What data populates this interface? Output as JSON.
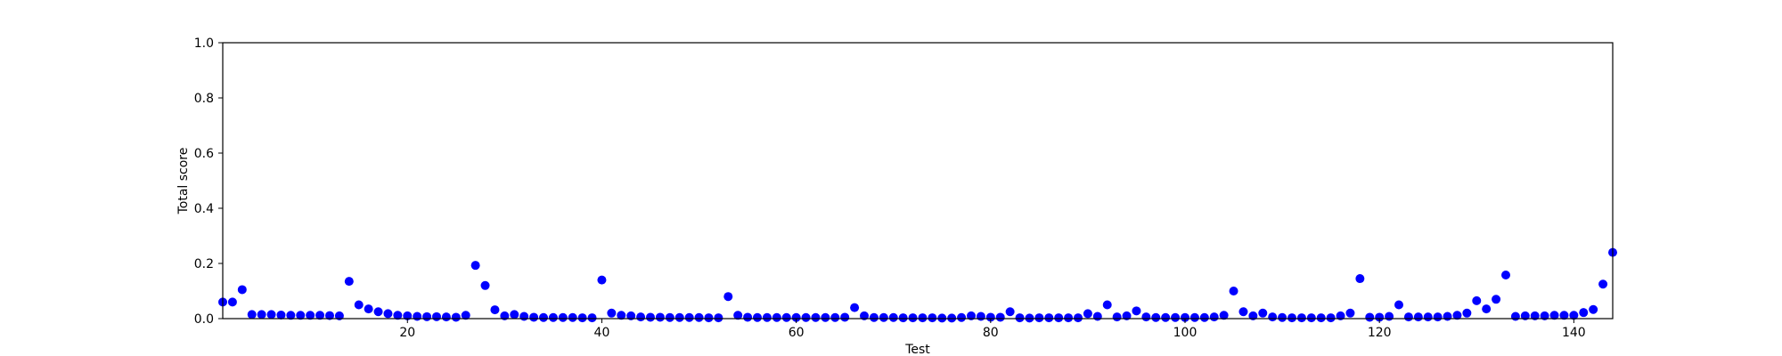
{
  "chart_data": {
    "type": "scatter",
    "title": "",
    "xlabel": "Test",
    "ylabel": "Total score",
    "xlim": [
      1,
      144
    ],
    "ylim": [
      0.0,
      1.0
    ],
    "x_ticks": [
      20,
      40,
      60,
      80,
      100,
      120,
      140
    ],
    "y_ticks": [
      0.0,
      0.2,
      0.4,
      0.6,
      0.8,
      1.0
    ],
    "x_tick_labels": [
      "20",
      "40",
      "60",
      "80",
      "100",
      "120",
      "140"
    ],
    "y_tick_labels": [
      "0.0",
      "0.2",
      "0.4",
      "0.6",
      "0.8",
      "1.0"
    ],
    "grid": false,
    "marker_color": "#0000ff",
    "series": [
      {
        "x": [
          1,
          2,
          3,
          4,
          5,
          6,
          7,
          8,
          9,
          10,
          11,
          12,
          13,
          14,
          15,
          16,
          17,
          18,
          19,
          20,
          21,
          22,
          23,
          24,
          25,
          26,
          27,
          28,
          29,
          30,
          31,
          32,
          33,
          34,
          35,
          36,
          37,
          38,
          39,
          40,
          41,
          42,
          43,
          44,
          45,
          46,
          47,
          48,
          49,
          50,
          51,
          52,
          53,
          54,
          55,
          56,
          57,
          58,
          59,
          60,
          61,
          62,
          63,
          64,
          65,
          66,
          67,
          68,
          69,
          70,
          71,
          72,
          73,
          74,
          75,
          76,
          77,
          78,
          79,
          80,
          81,
          82,
          83,
          84,
          85,
          86,
          87,
          88,
          89,
          90,
          91,
          92,
          93,
          94,
          95,
          96,
          97,
          98,
          99,
          100,
          101,
          102,
          103,
          104,
          105,
          106,
          107,
          108,
          109,
          110,
          111,
          112,
          113,
          114,
          115,
          116,
          117,
          118,
          119,
          120,
          121,
          122,
          123,
          124,
          125,
          126,
          127,
          128,
          129,
          130,
          131,
          132,
          133,
          134,
          135,
          136,
          137,
          138,
          139,
          140,
          141,
          142,
          143,
          144
        ],
        "y": [
          0.06,
          0.06,
          0.105,
          0.015,
          0.015,
          0.015,
          0.013,
          0.012,
          0.012,
          0.012,
          0.012,
          0.011,
          0.01,
          0.135,
          0.05,
          0.035,
          0.025,
          0.018,
          0.012,
          0.01,
          0.008,
          0.007,
          0.007,
          0.006,
          0.005,
          0.012,
          0.193,
          0.12,
          0.032,
          0.01,
          0.015,
          0.008,
          0.005,
          0.004,
          0.004,
          0.004,
          0.004,
          0.003,
          0.003,
          0.14,
          0.02,
          0.012,
          0.01,
          0.006,
          0.005,
          0.005,
          0.004,
          0.004,
          0.004,
          0.004,
          0.003,
          0.003,
          0.08,
          0.012,
          0.005,
          0.004,
          0.004,
          0.004,
          0.004,
          0.004,
          0.004,
          0.004,
          0.004,
          0.004,
          0.005,
          0.04,
          0.01,
          0.004,
          0.004,
          0.004,
          0.003,
          0.003,
          0.003,
          0.003,
          0.002,
          0.002,
          0.004,
          0.01,
          0.008,
          0.005,
          0.005,
          0.025,
          0.003,
          0.002,
          0.003,
          0.003,
          0.003,
          0.003,
          0.003,
          0.018,
          0.008,
          0.05,
          0.006,
          0.01,
          0.028,
          0.006,
          0.004,
          0.004,
          0.004,
          0.004,
          0.004,
          0.004,
          0.006,
          0.012,
          0.1,
          0.025,
          0.01,
          0.02,
          0.006,
          0.004,
          0.003,
          0.003,
          0.003,
          0.003,
          0.003,
          0.01,
          0.02,
          0.145,
          0.005,
          0.005,
          0.008,
          0.05,
          0.006,
          0.006,
          0.006,
          0.006,
          0.008,
          0.012,
          0.02,
          0.065,
          0.035,
          0.07,
          0.158,
          0.008,
          0.01,
          0.01,
          0.01,
          0.012,
          0.012,
          0.012,
          0.022,
          0.033,
          0.125,
          0.24
        ]
      }
    ]
  }
}
